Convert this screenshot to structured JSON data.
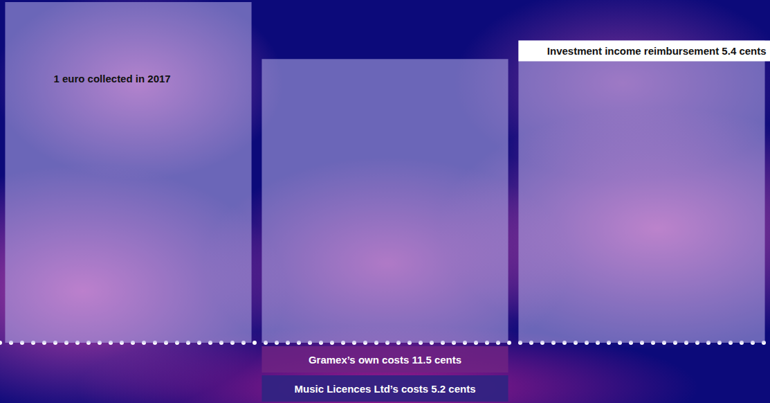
{
  "chart_data": {
    "type": "waterfall",
    "categories": [
      null,
      null,
      null
    ],
    "bars": [
      {
        "labels": [
          "1 euro collected in 2017"
        ],
        "values": [
          100
        ]
      },
      {
        "labels": [
          "Gramex’s own costs 11.5 cents",
          "Music Licences Ltd’s costs 5.2 cents"
        ],
        "values": [
          -11.5,
          -5.2
        ]
      },
      {
        "labels": [
          "Investment income reimbursement 5.4 cents"
        ],
        "values": [
          5.4
        ]
      }
    ],
    "ylim": [
      0,
      100
    ],
    "yticks": [
      0,
      100
    ],
    "grid": false,
    "tick_labels": false
  }
}
